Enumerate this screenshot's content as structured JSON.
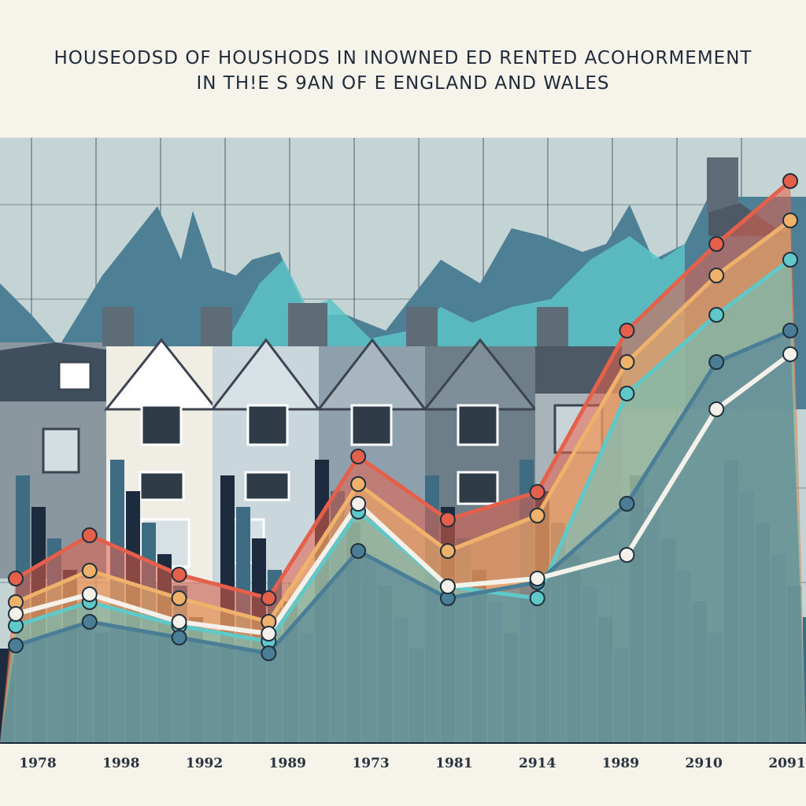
{
  "chart_data": {
    "type": "line",
    "title": "HOUSEODSD OF HOUSHODS  IN INOWNED  ED RENTED ACOHORMEMENT",
    "subtitle": "IN TH!E S  9AN OF E ENGLAND  AND  WALES",
    "xlabel": "",
    "ylabel": "",
    "x": [
      "1978",
      "1998",
      "1992",
      "1989",
      "1973",
      "1981",
      "2914",
      "1989",
      "2910",
      "2091"
    ],
    "grid": true,
    "series": [
      {
        "color": "#e5604a",
        "values": [
          735,
          680,
          730,
          760,
          580,
          660,
          625,
          420,
          310,
          230
        ]
      },
      {
        "color": "#f0b26a",
        "values": [
          765,
          725,
          760,
          790,
          615,
          700,
          655,
          460,
          350,
          280
        ]
      },
      {
        "color": "#5fc9c9",
        "values": [
          795,
          765,
          795,
          815,
          650,
          745,
          760,
          500,
          400,
          330
        ]
      },
      {
        "color": "#4a7e96",
        "values": [
          820,
          790,
          810,
          830,
          700,
          760,
          740,
          640,
          460,
          420
        ]
      },
      {
        "color": "#f3f1ea",
        "values": [
          780,
          755,
          790,
          805,
          640,
          745,
          735,
          705,
          520,
          450
        ]
      }
    ],
    "point_labels": {
      "coral": "●",
      "teal": "●",
      "white": "●"
    },
    "colors": {
      "background": "#f6f3ea",
      "grid": "#33465a",
      "sky": "#c4d3d3",
      "dark_bars": "#1c2b3d",
      "mid_bars": "#3e6c83",
      "houses": "#8aa1ad",
      "roof": "#4d5a66"
    }
  }
}
